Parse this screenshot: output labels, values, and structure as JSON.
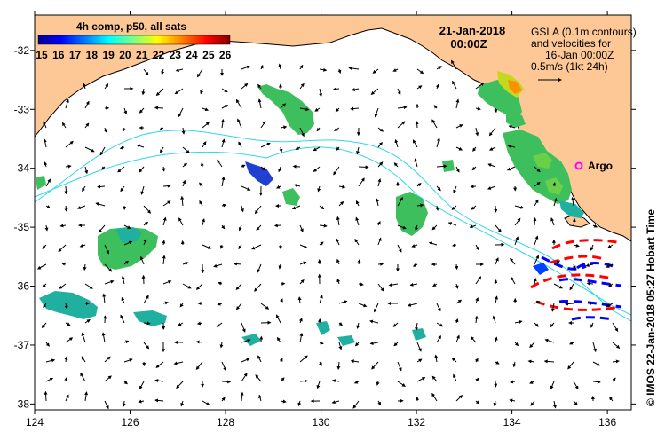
{
  "map": {
    "date_line1": "21-Jan-2018",
    "date_line2": "00:00Z",
    "colorbar": {
      "title": "4h comp, p50, all sats",
      "tick_labels": [
        "15",
        "16",
        "17",
        "18",
        "19",
        "20",
        "21",
        "22",
        "23",
        "24",
        "25",
        "26"
      ],
      "min": 15,
      "max": 26.5,
      "colors": [
        "#00008f",
        "#0000ff",
        "#0080ff",
        "#00ffff",
        "#80ff80",
        "#ffff00",
        "#ff8000",
        "#ff0000",
        "#800000"
      ]
    },
    "legend": {
      "line1": "GSLA (0.1m contours)",
      "line2": "and velocities for",
      "line3": "16-Jan 00:00Z",
      "line4": "0.5m/s (1kt 24h)"
    },
    "argo_label": "Argo",
    "credit": "©  IMOS 22-Jan-2018 05:27 Hobart Time",
    "x_axis": {
      "min": 124,
      "max": 136.5,
      "ticks": [
        "124",
        "126",
        "128",
        "130",
        "132",
        "134",
        "136"
      ],
      "tick_values": [
        124,
        126,
        128,
        130,
        132,
        134,
        136
      ]
    },
    "y_axis": {
      "min": -38.1,
      "max": -31.4,
      "ticks": [
        "-32",
        "-33",
        "-34",
        "-35",
        "-36",
        "-37",
        "-38"
      ],
      "tick_values": [
        -32,
        -33,
        -34,
        -35,
        -36,
        -37,
        -38
      ]
    },
    "colors": {
      "land": "#fdc896",
      "coast": "#000000",
      "contour_pos": "#ff0000",
      "contour_neg": "#0000ff",
      "sst_cyan": "#40e0d0",
      "argo": "#ff00ff",
      "gsla_line": "#30d8e8"
    }
  }
}
